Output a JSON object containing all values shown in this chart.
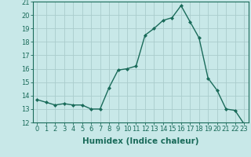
{
  "x": [
    0,
    1,
    2,
    3,
    4,
    5,
    6,
    7,
    8,
    9,
    10,
    11,
    12,
    13,
    14,
    15,
    16,
    17,
    18,
    19,
    20,
    21,
    22,
    23
  ],
  "y": [
    13.7,
    13.5,
    13.3,
    13.4,
    13.3,
    13.3,
    13.0,
    13.0,
    14.6,
    15.9,
    16.0,
    16.2,
    18.5,
    19.0,
    19.6,
    19.8,
    20.7,
    19.5,
    18.3,
    15.3,
    14.4,
    13.0,
    12.9,
    11.9
  ],
  "line_color": "#1a6b5a",
  "marker": "D",
  "marker_size": 2,
  "bg_color": "#c8e8e8",
  "grid_color": "#aacccc",
  "xlabel": "Humidex (Indice chaleur)",
  "ylabel": "",
  "ylim": [
    12,
    21
  ],
  "xlim": [
    -0.5,
    23.5
  ],
  "yticks": [
    12,
    13,
    14,
    15,
    16,
    17,
    18,
    19,
    20,
    21
  ],
  "xticks": [
    0,
    1,
    2,
    3,
    4,
    5,
    6,
    7,
    8,
    9,
    10,
    11,
    12,
    13,
    14,
    15,
    16,
    17,
    18,
    19,
    20,
    21,
    22,
    23
  ],
  "tick_fontsize": 6,
  "xlabel_fontsize": 7.5
}
